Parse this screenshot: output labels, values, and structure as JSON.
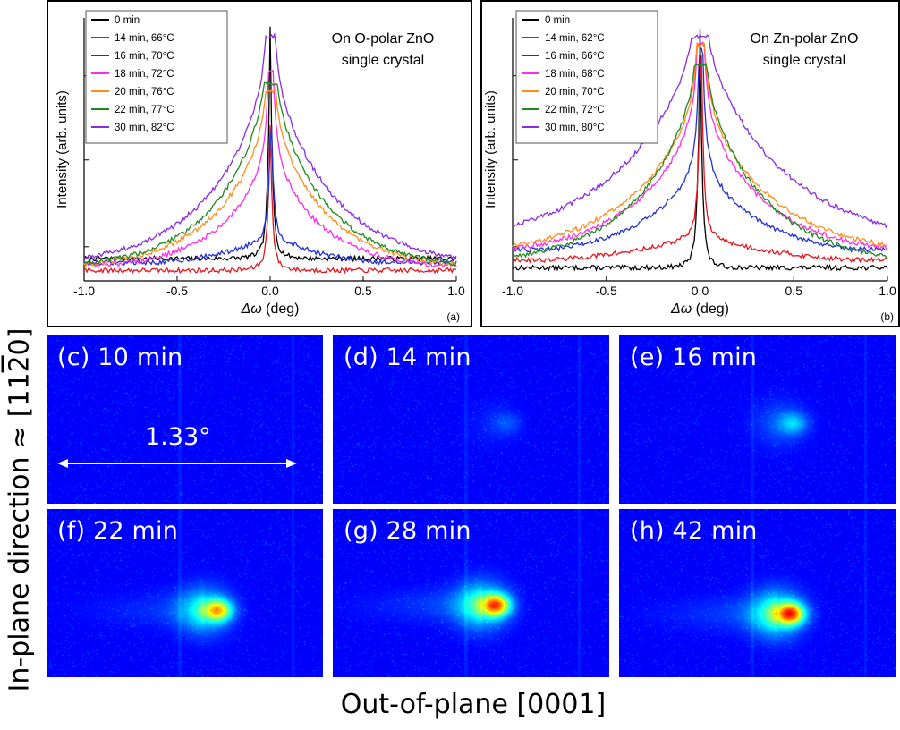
{
  "chart_data": [
    {
      "type": "line",
      "panel": "(a)",
      "annotation": [
        "On O-polar ZnO",
        "single crystal"
      ],
      "xlabel_symbol": "Δω",
      "xlabel_unit": "(deg)",
      "ylabel": "Intensity (arb. units)",
      "xlim": [
        -1.0,
        1.0
      ],
      "yscale": "log",
      "xticks": [
        "-1.0",
        "-0.5",
        "0.0",
        "0.5",
        "1.0"
      ],
      "legend_position": "top-left",
      "series": [
        {
          "name": "0 min",
          "color": "#000000",
          "base": 0.085,
          "peak": 0.97,
          "wide_amp": 0.0,
          "wide_w": 0.3,
          "skew": 0.0
        },
        {
          "name": "14 min, 66°C",
          "color": "#e8141c",
          "base": 0.04,
          "peak": 0.6,
          "wide_amp": 0.02,
          "wide_w": 0.3,
          "skew": 0.0
        },
        {
          "name": "16 min, 70°C",
          "color": "#1f2fdc",
          "base": 0.07,
          "peak": 0.6,
          "wide_amp": 0.12,
          "wide_w": 0.35,
          "skew": 0.1
        },
        {
          "name": "18 min, 72°C",
          "color": "#ff2ce8",
          "base": 0.06,
          "peak": 0.8,
          "wide_amp": 0.44,
          "wide_w": 0.28,
          "skew": 0.08
        },
        {
          "name": "20 min, 76°C",
          "color": "#ff8c1a",
          "base": 0.06,
          "peak": 0.72,
          "wide_amp": 0.58,
          "wide_w": 0.3,
          "skew": 0.06
        },
        {
          "name": "22 min, 77°C",
          "color": "#1e8a1e",
          "base": 0.06,
          "peak": 0.75,
          "wide_amp": 0.68,
          "wide_w": 0.3,
          "skew": 0.05
        },
        {
          "name": "30 min, 82°C",
          "color": "#8a2be2",
          "base": 0.07,
          "peak": 0.93,
          "wide_amp": 0.74,
          "wide_w": 0.34,
          "skew": 0.04
        }
      ]
    },
    {
      "type": "line",
      "panel": "(b)",
      "annotation": [
        "On Zn-polar ZnO",
        "single crystal"
      ],
      "xlabel_symbol": "Δω",
      "xlabel_unit": "(deg)",
      "ylabel": "Intensity (arb. units)",
      "xlim": [
        -1.0,
        1.0
      ],
      "yscale": "log",
      "xticks": [
        "-1.0",
        "-0.5",
        "0.0",
        "0.5",
        "1.0"
      ],
      "legend_position": "top-left",
      "series": [
        {
          "name": "0 min",
          "color": "#000000",
          "base": 0.05,
          "peak": 0.97,
          "wide_amp": 0.02,
          "wide_w": 0.3,
          "skew": 0.0
        },
        {
          "name": "14 min, 62°C",
          "color": "#e8141c",
          "base": 0.08,
          "peak": 0.92,
          "wide_amp": 0.12,
          "wide_w": 0.5,
          "skew": 0.1
        },
        {
          "name": "16 min, 66°C",
          "color": "#1f2fdc",
          "base": 0.12,
          "peak": 0.88,
          "wide_amp": 0.35,
          "wide_w": 0.35,
          "skew": 0.1
        },
        {
          "name": "18 min, 68°C",
          "color": "#ff2ce8",
          "base": 0.13,
          "peak": 0.9,
          "wide_amp": 0.56,
          "wide_w": 0.35,
          "skew": 0.08
        },
        {
          "name": "20 min, 70°C",
          "color": "#ff8c1a",
          "base": 0.13,
          "peak": 0.9,
          "wide_amp": 0.61,
          "wide_w": 0.38,
          "skew": 0.07
        },
        {
          "name": "22 min, 72°C",
          "color": "#1e8a1e",
          "base": 0.08,
          "peak": 0.82,
          "wide_amp": 0.7,
          "wide_w": 0.34,
          "skew": 0.05
        },
        {
          "name": "30 min, 80°C",
          "color": "#8a2be2",
          "base": 0.18,
          "peak": 0.93,
          "wide_amp": 0.78,
          "wide_w": 0.45,
          "skew": 0.03
        }
      ]
    },
    {
      "type": "heatmap",
      "colormap": "jet",
      "ylabel": "In-plane direction ≈ [11",
      "ylabel_bar": "2",
      "ylabel_end": "0]",
      "xlabel": "Out-of-plane [0001]",
      "scale_label": "1.33°",
      "panels": [
        {
          "label": "(c) 10 min",
          "spot": 0.0,
          "tail": 0.0,
          "cx": 0.58,
          "cy": 0.55
        },
        {
          "label": "(d) 14 min",
          "spot": 0.12,
          "tail": 0.0,
          "cx": 0.58,
          "cy": 0.52
        },
        {
          "label": "(e) 16 min",
          "spot": 0.3,
          "tail": 0.02,
          "cx": 0.58,
          "cy": 0.52
        },
        {
          "label": "(f) 22 min",
          "spot": 0.8,
          "tail": 0.35,
          "cx": 0.57,
          "cy": 0.6
        },
        {
          "label": "(g) 28 min",
          "spot": 0.95,
          "tail": 0.45,
          "cx": 0.54,
          "cy": 0.57
        },
        {
          "label": "(h) 42 min",
          "spot": 1.0,
          "tail": 0.45,
          "cx": 0.57,
          "cy": 0.62
        }
      ]
    }
  ]
}
